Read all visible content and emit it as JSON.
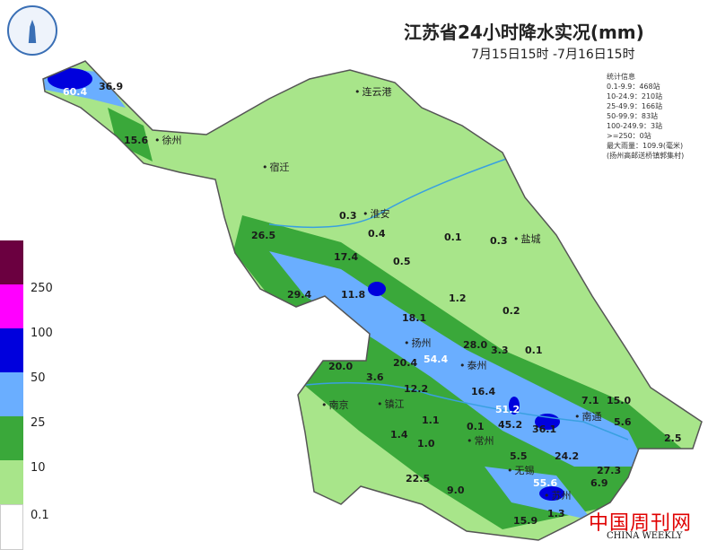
{
  "title": "江苏省24小时降水实况(mm)",
  "subtitle": "7月15日15时 -7月16日15时",
  "stats": {
    "heading": "统计信息",
    "lines": [
      "0.1-9.9：468站",
      "10-24.9：210站",
      "25-49.9：166站",
      "50-99.9：83站",
      "100-249.9：3站",
      ">=250：0站",
      "最大雨量：109.9(毫米)",
      "(扬州高邮送桥镇郭集村)"
    ]
  },
  "legend": {
    "labels": [
      "250",
      "100",
      "50",
      "25",
      "10",
      "0.1"
    ],
    "colors": [
      "#6b0040",
      "#ff00ff",
      "#0000dd",
      "#6aaeff",
      "#3aa83a",
      "#a8e58a",
      "#ffffff"
    ]
  },
  "cities": [
    "连云港",
    "徐州",
    "宿迁",
    "淮安",
    "盐城",
    "扬州",
    "泰州",
    "南京",
    "镇江",
    "常州",
    "南通",
    "无锡",
    "苏州"
  ],
  "values": [
    "60.4",
    "36.9",
    "15.6",
    "0.3",
    "0.4",
    "0.1",
    "0.3",
    "26.5",
    "17.4",
    "0.5",
    "29.4",
    "11.8",
    "1.2",
    "0.2",
    "18.1",
    "28.0",
    "3.3",
    "0.1",
    "20.0",
    "20.4",
    "54.4",
    "3.6",
    "12.2",
    "16.4",
    "7.1",
    "15.0",
    "51.2",
    "1.1",
    "45.2",
    "36.1",
    "5.6",
    "1.4",
    "0.1",
    "1.0",
    "2.5",
    "5.5",
    "24.2",
    "27.3",
    "22.5",
    "9.0",
    "55.6",
    "6.9",
    "15.9",
    "1.3"
  ],
  "watermark": {
    "cn": "中国周刊网",
    "en": "CHINA WEEKLY"
  }
}
